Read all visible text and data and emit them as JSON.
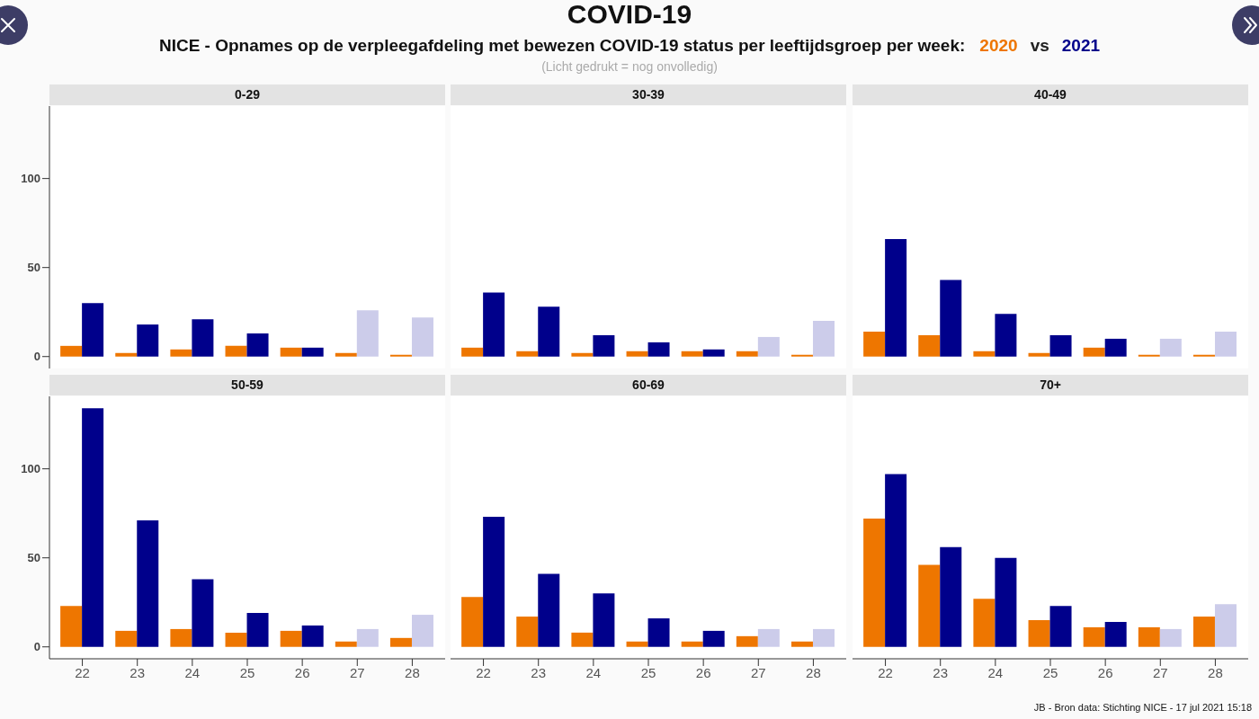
{
  "chart_data": [
    {
      "type": "other",
      "title": "COVID-19",
      "subtitle": "NICE - Opnames op de verpleegafdeling met bewezen COVID-19 status per leeftijdsgroep per week:",
      "annotations": [
        "vs",
        "(Licht gedrukt = nog onvolledig)",
        "JB - Bron data: Stichting NICE - 17 jul 2021 15:18"
      ]
    },
    {
      "type": "bar",
      "title": "0-29",
      "categories": [
        "22",
        "23",
        "24",
        "25",
        "26",
        "27",
        "28"
      ],
      "series": [
        {
          "name": "2020",
          "color": "#ee7600",
          "values": [
            6,
            2,
            4,
            6,
            5,
            2,
            1
          ]
        },
        {
          "name": "2021",
          "color": "#00008b",
          "colors": [
            "#00008b",
            "#00008b",
            "#00008b",
            "#00008b",
            "#00008b",
            "#ccccea",
            "#ccccea"
          ],
          "values": [
            30,
            18,
            21,
            13,
            5,
            26,
            22
          ]
        }
      ],
      "ylim": [
        -6.7,
        140.7
      ],
      "yticks": [
        0,
        50,
        100
      ],
      "tick_labels": "y"
    },
    {
      "type": "bar",
      "title": "30-39",
      "categories": [
        "22",
        "23",
        "24",
        "25",
        "26",
        "27",
        "28"
      ],
      "series": [
        {
          "color": "#ee7600",
          "values": [
            5,
            3,
            2,
            3,
            3,
            3,
            1
          ]
        },
        {
          "color": "#00008b",
          "colors": [
            "#00008b",
            "#00008b",
            "#00008b",
            "#00008b",
            "#00008b",
            "#ccccea",
            "#ccccea"
          ],
          "values": [
            36,
            28,
            12,
            8,
            4,
            11,
            20
          ]
        }
      ],
      "ylim": [
        -6.7,
        140.7
      ],
      "yticks": [
        0,
        50,
        100
      ],
      "tick_labels": false
    },
    {
      "type": "bar",
      "title": "40-49",
      "categories": [
        "22",
        "23",
        "24",
        "25",
        "26",
        "27",
        "28"
      ],
      "series": [
        {
          "color": "#ee7600",
          "values": [
            14,
            12,
            3,
            2,
            5,
            1,
            1
          ]
        },
        {
          "color": "#00008b",
          "colors": [
            "#00008b",
            "#00008b",
            "#00008b",
            "#00008b",
            "#00008b",
            "#ccccea",
            "#ccccea"
          ],
          "values": [
            66,
            43,
            24,
            12,
            10,
            10,
            14
          ]
        }
      ],
      "ylim": [
        -6.7,
        140.7
      ],
      "yticks": [
        0,
        50,
        100
      ],
      "tick_labels": false
    },
    {
      "type": "bar",
      "title": "50-59",
      "categories": [
        "22",
        "23",
        "24",
        "25",
        "26",
        "27",
        "28"
      ],
      "series": [
        {
          "color": "#ee7600",
          "values": [
            23,
            9,
            10,
            8,
            9,
            3,
            5
          ]
        },
        {
          "color": "#00008b",
          "colors": [
            "#00008b",
            "#00008b",
            "#00008b",
            "#00008b",
            "#00008b",
            "#ccccea",
            "#ccccea"
          ],
          "values": [
            134,
            71,
            38,
            19,
            12,
            10,
            18
          ]
        }
      ],
      "ylim": [
        -6.7,
        140.7
      ],
      "yticks": [
        0,
        50,
        100
      ]
    },
    {
      "type": "bar",
      "title": "60-69",
      "categories": [
        "22",
        "23",
        "24",
        "25",
        "26",
        "27",
        "28"
      ],
      "series": [
        {
          "color": "#ee7600",
          "values": [
            28,
            17,
            8,
            3,
            3,
            6,
            3
          ]
        },
        {
          "color": "#00008b",
          "colors": [
            "#00008b",
            "#00008b",
            "#00008b",
            "#00008b",
            "#00008b",
            "#ccccea",
            "#ccccea"
          ],
          "values": [
            73,
            41,
            30,
            16,
            9,
            10,
            10
          ]
        }
      ],
      "ylim": [
        -6.7,
        140.7
      ],
      "yticks": [
        0,
        50,
        100
      ],
      "tick_labels": "x"
    },
    {
      "type": "bar",
      "title": "70+",
      "categories": [
        "22",
        "23",
        "24",
        "25",
        "26",
        "27",
        "28"
      ],
      "series": [
        {
          "color": "#ee7600",
          "values": [
            72,
            46,
            27,
            15,
            11,
            11,
            17
          ]
        },
        {
          "color": "#00008b",
          "colors": [
            "#00008b",
            "#00008b",
            "#00008b",
            "#00008b",
            "#00008b",
            "#ccccea",
            "#ccccea"
          ],
          "values": [
            97,
            56,
            50,
            23,
            14,
            10,
            24
          ]
        }
      ],
      "ylim": [
        -6.7,
        140.7
      ],
      "yticks": [
        0,
        50,
        100
      ],
      "tick_labels": "x"
    }
  ]
}
